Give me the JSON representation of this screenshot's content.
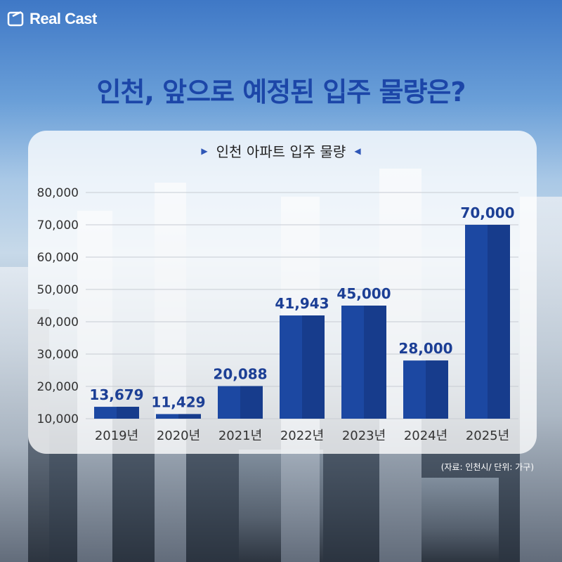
{
  "brand": {
    "name": "Real Cast"
  },
  "headline": "인천, 앞으로 예정된 입주 물량은?",
  "source_note": "(자료: 인천시/ 단위: 가구)",
  "colors": {
    "bar": "#1c48a2",
    "bar_shade": "#173c8c",
    "value_label": "#1c3f95",
    "headline": "#1c46a8"
  },
  "chart_data": {
    "type": "bar",
    "title": "인천 아파트 입주 물량",
    "categories": [
      "2019년",
      "2020년",
      "2021년",
      "2022년",
      "2023년",
      "2024년",
      "2025년"
    ],
    "values": [
      13679,
      11429,
      20088,
      41943,
      45000,
      28000,
      70000
    ],
    "value_labels": [
      "13,679",
      "11,429",
      "20,088",
      "41,943",
      "45,000",
      "28,000",
      "70,000"
    ],
    "ylim": [
      10000,
      80000
    ],
    "yticks": [
      10000,
      20000,
      30000,
      40000,
      50000,
      60000,
      70000,
      80000
    ],
    "ytick_labels": [
      "10,000",
      "20,000",
      "30,000",
      "40,000",
      "50,000",
      "60,000",
      "70,000",
      "80,000"
    ],
    "xlabel": "",
    "ylabel": "",
    "grid": true
  }
}
